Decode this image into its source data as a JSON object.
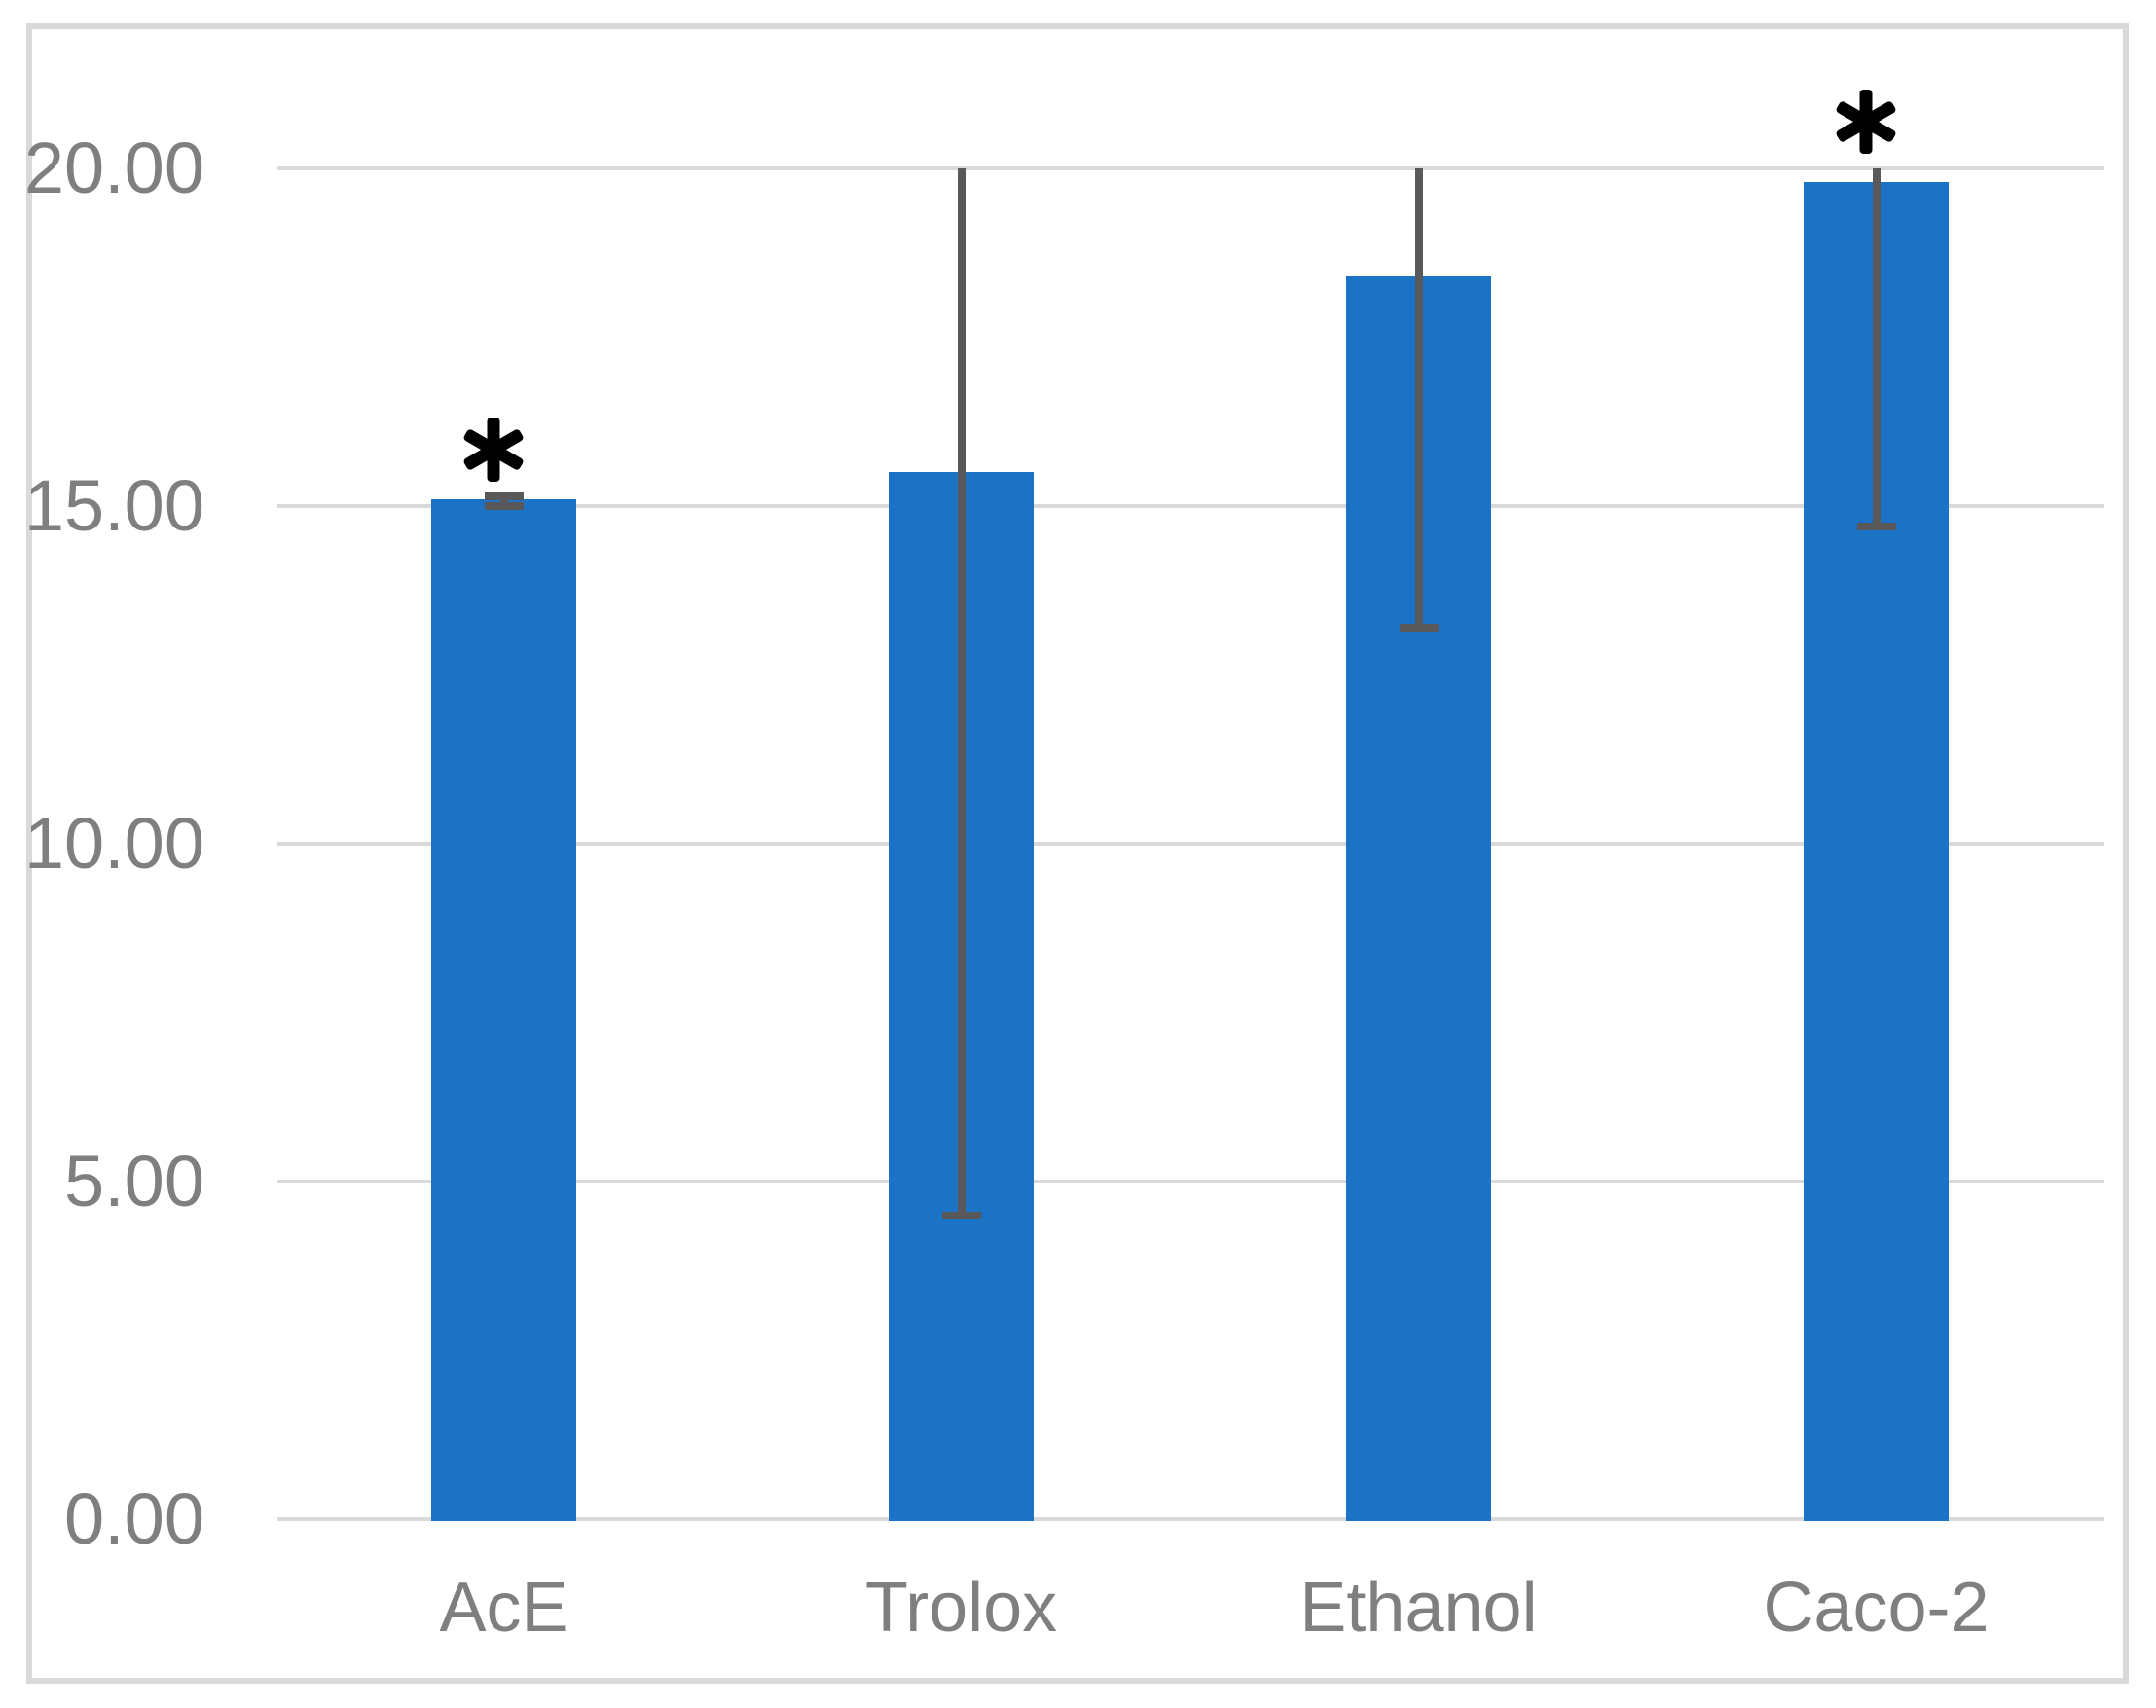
{
  "figure": {
    "kind": "excel-style bar chart with error bars",
    "background_color": "#FFFFFF",
    "border_color": "#D9D9D9",
    "title": ""
  },
  "axes": {
    "y": {
      "min": 0,
      "max": 20,
      "tick_step": 5,
      "tick_labels": [
        "0.00",
        "5.00",
        "10.00",
        "15.00",
        "20.00"
      ],
      "label_color": "#7F7F7F"
    },
    "x": {
      "categories": [
        "AcE",
        "Trolox",
        "Ethanol",
        "Caco-2"
      ],
      "label_color": "#7F7F7F"
    }
  },
  "chart_data": {
    "type": "bar",
    "title": "",
    "xlabel": "",
    "ylabel": "",
    "categories": [
      "AcE",
      "Trolox",
      "Ethanol",
      "Caco-2"
    ],
    "values": [
      15.1,
      15.5,
      18.4,
      19.8
    ],
    "ylim": [
      0,
      20
    ],
    "ytick_labels": [
      "0.00",
      "5.00",
      "10.00",
      "15.00",
      "20.00"
    ],
    "grid": true,
    "legend": false,
    "bar_color": "#1C73C6",
    "gridline_color": "#D9D9D9",
    "error_bars": {
      "color": "#595959",
      "upper_whisker_end": [
        15.15,
        20.0,
        20.0,
        20.0
      ],
      "lower_whisker_end": [
        15.0,
        4.5,
        13.2,
        14.7
      ],
      "upper_clipped_at_axis_max": [
        false,
        true,
        true,
        true
      ],
      "top_cap_visible": [
        true,
        false,
        false,
        false
      ],
      "bottom_cap_visible": [
        true,
        true,
        true,
        true
      ]
    },
    "annotations": [
      {
        "category": "AcE",
        "symbol": "*",
        "meaning": "significance marker"
      },
      {
        "category": "Caco-2",
        "symbol": "*",
        "meaning": "significance marker"
      }
    ]
  }
}
